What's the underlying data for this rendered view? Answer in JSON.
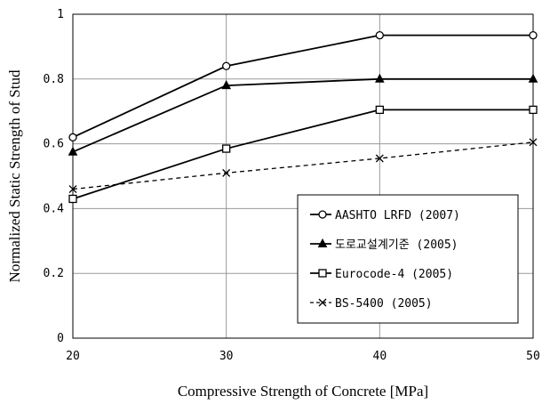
{
  "chart_data": {
    "type": "line",
    "xlabel": "Compressive Strength of Concrete [MPa]",
    "ylabel": "Normalized Static Strength of Stud",
    "x": [
      20,
      30,
      40,
      50
    ],
    "x_ticks": [
      "20",
      "30",
      "40",
      "50"
    ],
    "y_ticks": [
      "0",
      "0.2",
      "0.4",
      "0.6",
      "0.8",
      "1"
    ],
    "xlim": [
      20,
      50
    ],
    "ylim": [
      0,
      1
    ],
    "grid": true,
    "legend_position": "bottom-right",
    "series": [
      {
        "name": "AASHTO LRFD (2007)",
        "values": [
          0.62,
          0.84,
          0.935,
          0.935
        ],
        "marker": "open-circle",
        "line": "solid"
      },
      {
        "name": "도로교설계기준 (2005)",
        "values": [
          0.575,
          0.78,
          0.8,
          0.8
        ],
        "marker": "filled-triangle",
        "line": "solid"
      },
      {
        "name": "Eurocode-4 (2005)",
        "values": [
          0.43,
          0.585,
          0.705,
          0.705
        ],
        "marker": "open-square",
        "line": "solid"
      },
      {
        "name": "BS-5400 (2005)",
        "values": [
          0.46,
          0.51,
          0.555,
          0.605
        ],
        "marker": "x",
        "line": "dashed"
      }
    ]
  }
}
